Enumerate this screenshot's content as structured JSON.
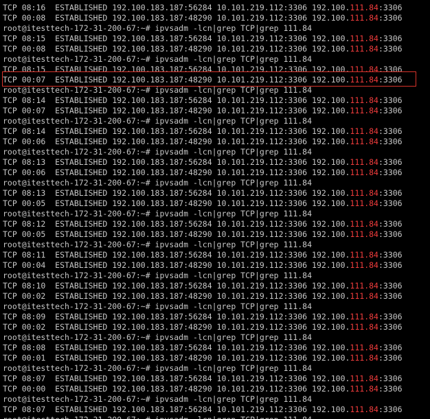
{
  "terminal": {
    "lines": [
      {
        "text": "TCP 08:16  ESTABLISHED 192.100.183.187:56284 10.101.219.112:3306 192.100.",
        "highlight": "111.84",
        "rest": ":3306"
      },
      {
        "text": "TCP 00:08  ESTABLISHED 192.100.183.187:48290 10.101.219.112:3306 192.100.",
        "highlight": "111.84",
        "rest": ":3306"
      },
      {
        "text": "root@itesttech-172-31-200-67:~# ipvsadm -lcn|grep TCP|grep 111.84"
      },
      {
        "text": "TCP 08:15  ESTABLISHED 192.100.183.187:56284 10.101.219.112:3306 192.100.",
        "highlight": "111.84",
        "rest": ":3306"
      },
      {
        "text": "TCP 00:08  ESTABLISHED 192.100.183.187:48290 10.101.219.112:3306 192.100.",
        "highlight": "111.84",
        "rest": ":3306"
      },
      {
        "text": "root@itesttech-172-31-200-67:~# ipvsadm -lcn|grep TCP|grep 111.84"
      },
      {
        "text": "TCP 08:15  ESTABLISHED 192.100.183.187:56284 10.101.219.112:3306 192.100.",
        "highlight": "111.84",
        "rest": ":3306"
      },
      {
        "text": "TCP 00:07  ESTABLISHED 192.100.183.187:48290 10.101.219.112:3306 192.100.",
        "highlight": "111.84",
        "rest": ":3306"
      },
      {
        "text": "root@itesttech-172-31-200-67:~# ipvsadm -lcn|grep TCP|grep 111.84"
      },
      {
        "text": "TCP 08:14  ESTABLISHED 192.100.183.187:56284 10.101.219.112:3306 192.100.",
        "highlight": "111.84",
        "rest": ":3306"
      },
      {
        "text": "TCP 00:07  ESTABLISHED 192.100.183.187:48290 10.101.219.112:3306 192.100.",
        "highlight": "111.84",
        "rest": ":3306"
      },
      {
        "text": "root@itesttech-172-31-200-67:~# ipvsadm -lcn|grep TCP|grep 111.84"
      },
      {
        "text": "TCP 08:14  ESTABLISHED 192.100.183.187:56284 10.101.219.112:3306 192.100.",
        "highlight": "111.84",
        "rest": ":3306"
      },
      {
        "text": "TCP 00:06  ESTABLISHED 192.100.183.187:48290 10.101.219.112:3306 192.100.",
        "highlight": "111.84",
        "rest": ":3306"
      },
      {
        "text": "root@itesttech-172-31-200-67:~# ipvsadm -lcn|grep TCP|grep 111.84"
      },
      {
        "text": "TCP 08:13  ESTABLISHED 192.100.183.187:56284 10.101.219.112:3306 192.100.",
        "highlight": "111.84",
        "rest": ":3306"
      },
      {
        "text": "TCP 00:06  ESTABLISHED 192.100.183.187:48290 10.101.219.112:3306 192.100.",
        "highlight": "111.84",
        "rest": ":3306"
      },
      {
        "text": "root@itesttech-172-31-200-67:~# ipvsadm -lcn|grep TCP|grep 111.84"
      },
      {
        "text": "TCP 08:13  ESTABLISHED 192.100.183.187:56284 10.101.219.112:3306 192.100.",
        "highlight": "111.84",
        "rest": ":3306"
      },
      {
        "text": "TCP 00:05  ESTABLISHED 192.100.183.187:48290 10.101.219.112:3306 192.100.",
        "highlight": "111.84",
        "rest": ":3306"
      },
      {
        "text": "root@itesttech-172-31-200-67:~# ipvsadm -lcn|grep TCP|grep 111.84"
      },
      {
        "text": "TCP 08:12  ESTABLISHED 192.100.183.187:56284 10.101.219.112:3306 192.100.",
        "highlight": "111.84",
        "rest": ":3306"
      },
      {
        "text": "TCP 00:05  ESTABLISHED 192.100.183.187:48290 10.101.219.112:3306 192.100.",
        "highlight": "111.84",
        "rest": ":3306"
      },
      {
        "text": "root@itesttech-172-31-200-67:~# ipvsadm -lcn|grep TCP|grep 111.84"
      },
      {
        "text": "TCP 08:11  ESTABLISHED 192.100.183.187:56284 10.101.219.112:3306 192.100.",
        "highlight": "111.84",
        "rest": ":3306"
      },
      {
        "text": "TCP 00:04  ESTABLISHED 192.100.183.187:48290 10.101.219.112:3306 192.100.",
        "highlight": "111.84",
        "rest": ":3306"
      },
      {
        "text": "root@itesttech-172-31-200-67:~# ipvsadm -lcn|grep TCP|grep 111.84"
      },
      {
        "text": "TCP 08:10  ESTABLISHED 192.100.183.187:56284 10.101.219.112:3306 192.100.",
        "highlight": "111.84",
        "rest": ":3306"
      },
      {
        "text": "TCP 00:02  ESTABLISHED 192.100.183.187:48290 10.101.219.112:3306 192.100.",
        "highlight": "111.84",
        "rest": ":3306"
      },
      {
        "text": "root@itesttech-172-31-200-67:~# ipvsadm -lcn|grep TCP|grep 111.84"
      },
      {
        "text": "TCP 08:09  ESTABLISHED 192.100.183.187:56284 10.101.219.112:3306 192.100.",
        "highlight": "111.84",
        "rest": ":3306"
      },
      {
        "text": "TCP 00:02  ESTABLISHED 192.100.183.187:48290 10.101.219.112:3306 192.100.",
        "highlight": "111.84",
        "rest": ":3306"
      },
      {
        "text": "root@itesttech-172-31-200-67:~# ipvsadm -lcn|grep TCP|grep 111.84"
      },
      {
        "text": "TCP 08:08  ESTABLISHED 192.100.183.187:56284 10.101.219.112:3306 192.100.",
        "highlight": "111.84",
        "rest": ":3306"
      },
      {
        "text": "TCP 00:01  ESTABLISHED 192.100.183.187:48290 10.101.219.112:3306 192.100.",
        "highlight": "111.84",
        "rest": ":3306"
      },
      {
        "text": "root@itesttech-172-31-200-67:~# ipvsadm -lcn|grep TCP|grep 111.84"
      },
      {
        "text": "TCP 08:07  ESTABLISHED 192.100.183.187:56284 10.101.219.112:3306 192.100.",
        "highlight": "111.84",
        "rest": ":3306"
      },
      {
        "text": "TCP 00:00  ESTABLISHED 192.100.183.187:48290 10.101.219.112:3306 192.100.",
        "highlight": "111.84",
        "rest": ":3306"
      },
      {
        "text": "root@itesttech-172-31-200-67:~# ipvsadm -lcn|grep TCP|grep 111.84"
      },
      {
        "text": "TCP 08:07  ESTABLISHED 192.100.183.187:56284 10.101.219.112:3306 192.100.",
        "highlight": "111.84",
        "rest": ":3306"
      },
      {
        "text": "root@itesttech-172-31-200-67:~# ipvsadm -lcn|grep TCP|grep 111.84"
      }
    ]
  }
}
